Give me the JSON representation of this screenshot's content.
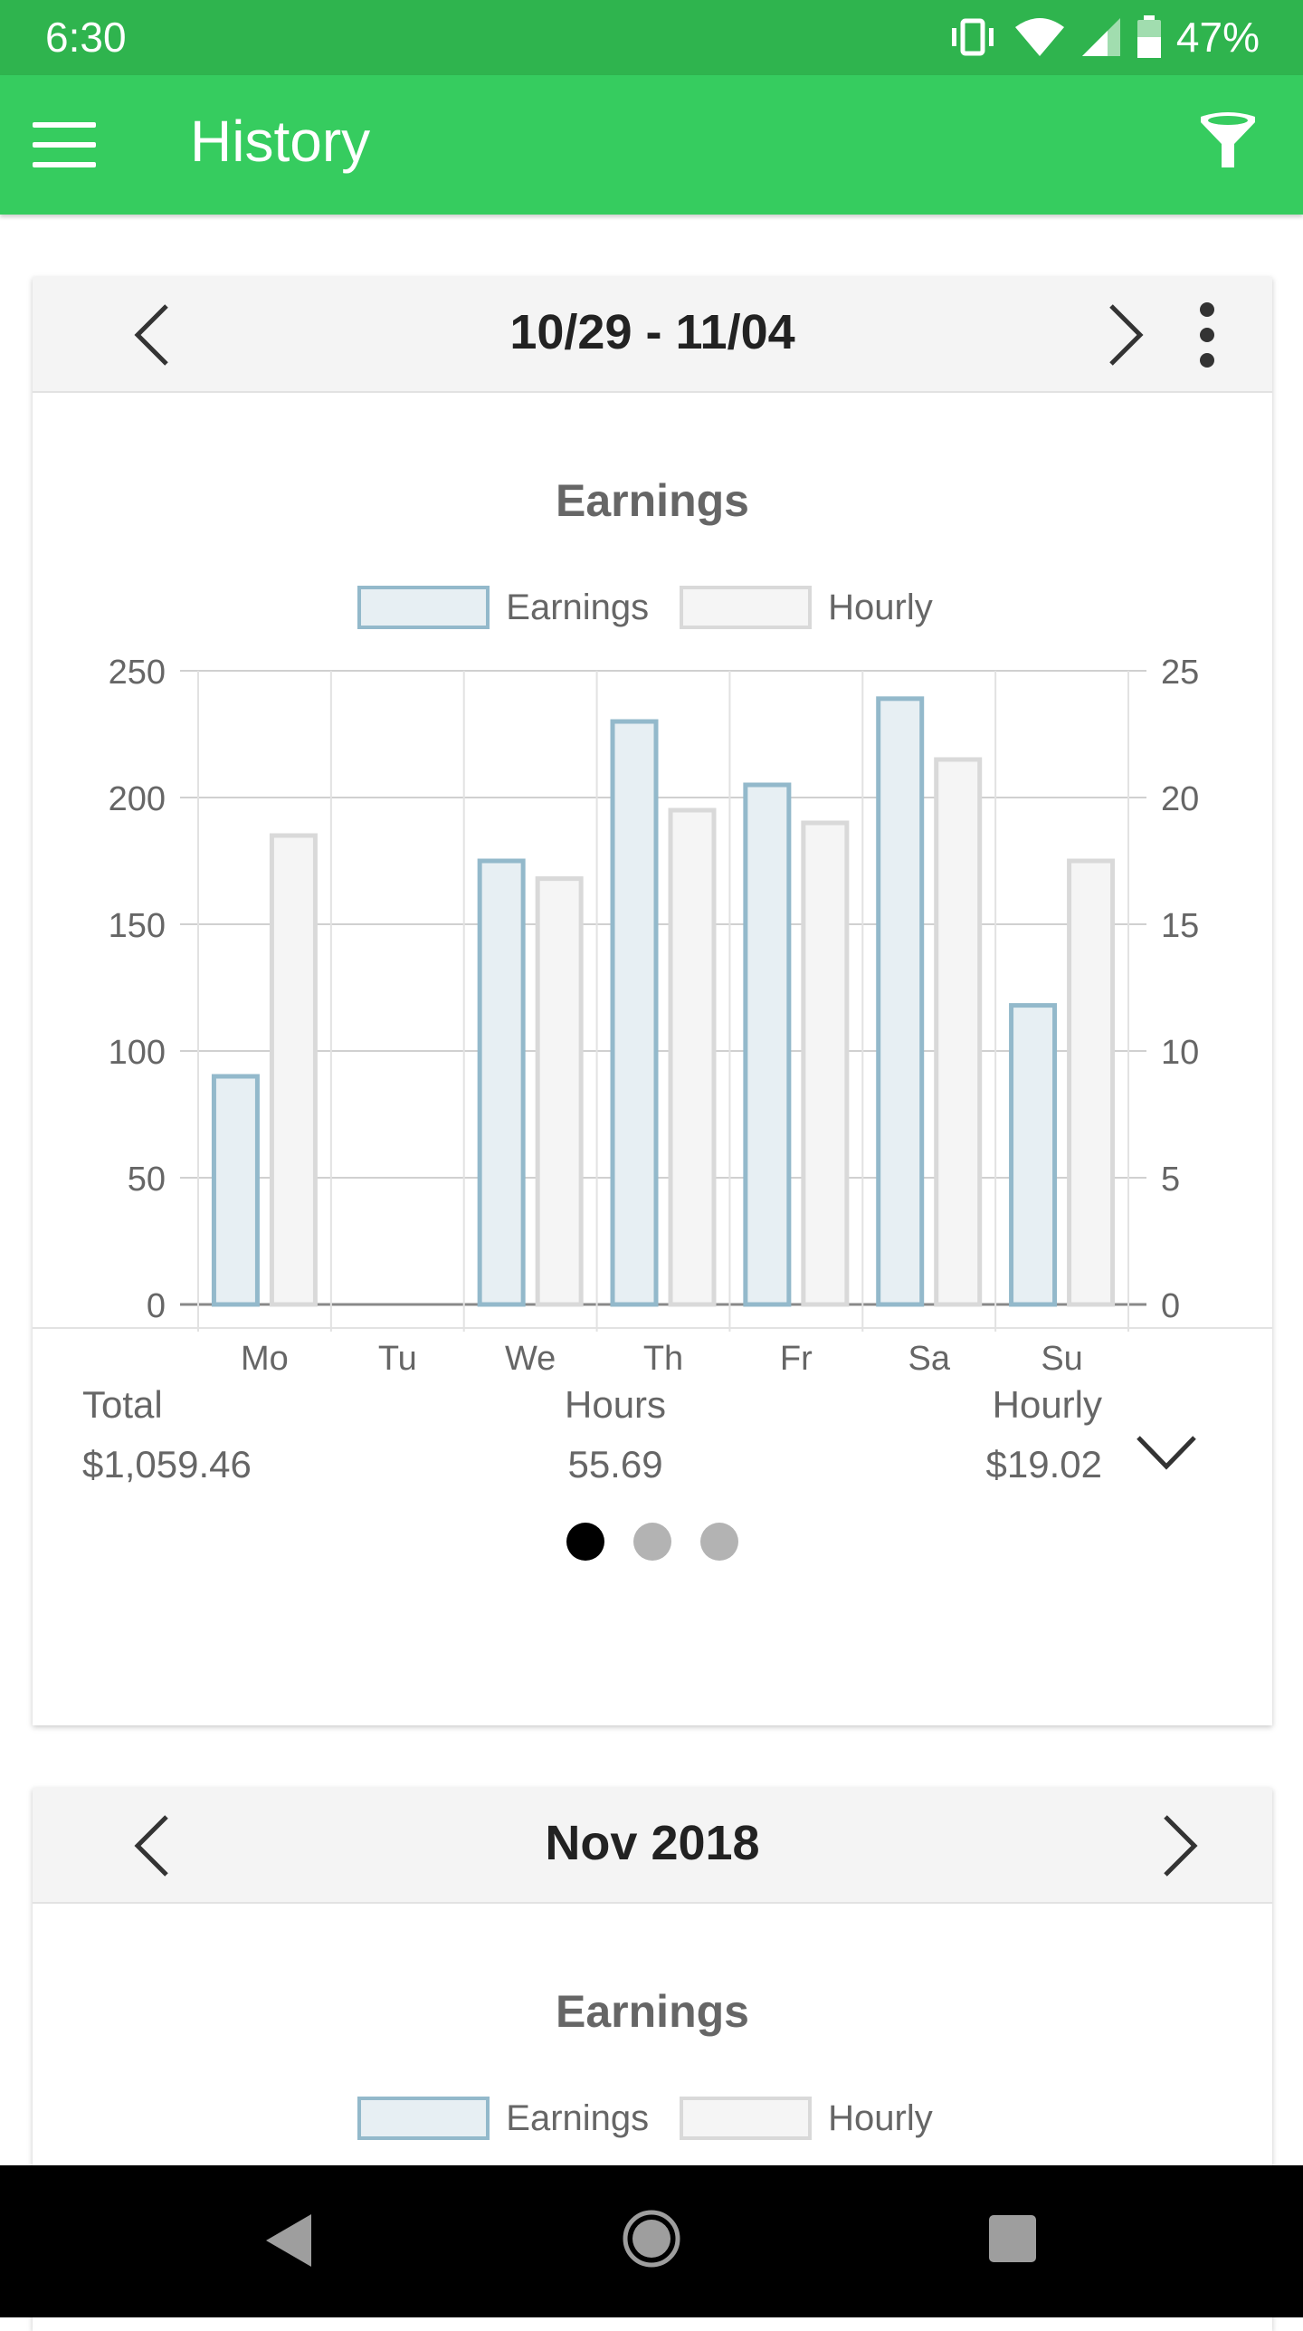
{
  "status_bar": {
    "time": "6:30",
    "battery": "47%"
  },
  "app_bar": {
    "title": "History",
    "menu_icon": "hamburger-menu-icon",
    "filter_icon": "funnel-filter-icon"
  },
  "colors": {
    "status_bar": "#2fb44e",
    "app_bar": "#36cc5f",
    "earnings_border": "#93b9cb",
    "earnings_fill": "#e7eff3",
    "hourly_border": "#d9d9d9",
    "hourly_fill": "#f5f5f5"
  },
  "week_card": {
    "range_title": "10/29 - 11/04",
    "chart_title": "Earnings",
    "legend": {
      "earnings": "Earnings",
      "hourly": "Hourly"
    },
    "summary": {
      "total_label": "Total",
      "total_value": "$1,059.46",
      "hours_label": "Hours",
      "hours_value": "55.69",
      "hourly_label": "Hourly",
      "hourly_value": "$19.02"
    }
  },
  "month_card": {
    "range_title": "Nov 2018",
    "chart_title": "Earnings",
    "legend": {
      "earnings": "Earnings",
      "hourly": "Hourly"
    }
  },
  "chart_data": {
    "type": "bar",
    "categories": [
      "Mo",
      "Tu",
      "We",
      "Th",
      "Fr",
      "Sa",
      "Su"
    ],
    "series": [
      {
        "name": "Earnings",
        "axis": "left",
        "values": [
          90,
          0,
          175,
          230,
          205,
          239,
          118
        ]
      },
      {
        "name": "Hourly",
        "axis": "right",
        "values": [
          18.5,
          0,
          16.8,
          19.5,
          19.0,
          21.5,
          17.5
        ]
      }
    ],
    "y_left": {
      "min": 0,
      "max": 250,
      "ticks": [
        0,
        50,
        100,
        150,
        200,
        250
      ]
    },
    "y_right": {
      "min": 0,
      "max": 25,
      "ticks": [
        0,
        5,
        10,
        15,
        20,
        25
      ]
    },
    "grid": true,
    "legend_position": "top"
  }
}
